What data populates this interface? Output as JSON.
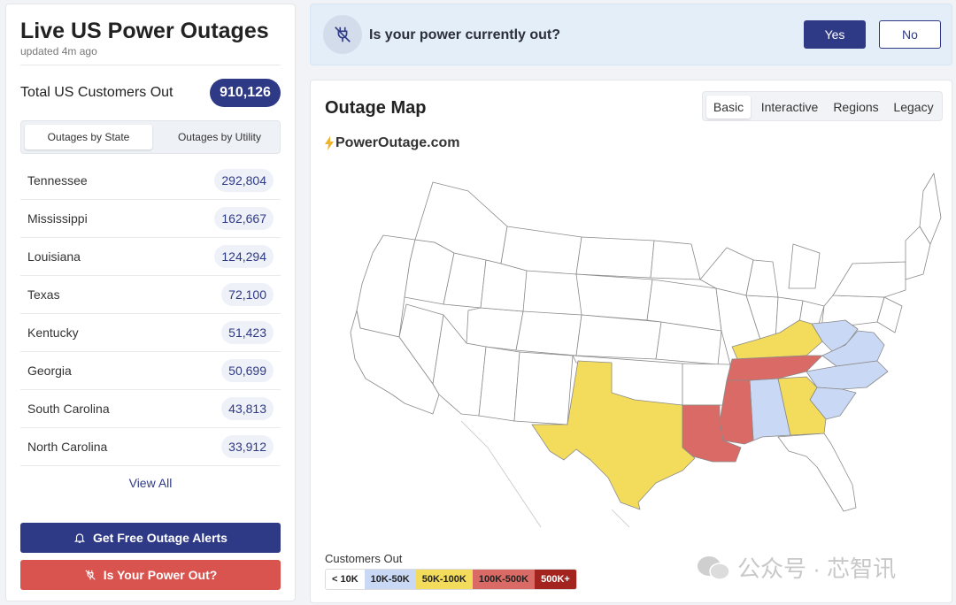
{
  "sidebar": {
    "title": "Live US Power Outages",
    "updated": "updated 4m ago",
    "total_label": "Total US Customers Out",
    "total_value": "910,126",
    "tabs": [
      {
        "label": "Outages by State"
      },
      {
        "label": "Outages by Utility"
      }
    ],
    "states": [
      {
        "name": "Tennessee",
        "value": "292,804"
      },
      {
        "name": "Mississippi",
        "value": "162,667"
      },
      {
        "name": "Louisiana",
        "value": "124,294"
      },
      {
        "name": "Texas",
        "value": "72,100"
      },
      {
        "name": "Kentucky",
        "value": "51,423"
      },
      {
        "name": "Georgia",
        "value": "50,699"
      },
      {
        "name": "South Carolina",
        "value": "43,813"
      },
      {
        "name": "North Carolina",
        "value": "33,912"
      }
    ],
    "view_all": "View All",
    "alerts_button": "Get Free Outage Alerts",
    "power_out_button": "Is Your Power Out?"
  },
  "banner": {
    "question": "Is your power currently out?",
    "yes": "Yes",
    "no": "No"
  },
  "map": {
    "title": "Outage Map",
    "tabs": [
      "Basic",
      "Interactive",
      "Regions",
      "Legacy"
    ],
    "active_tab": "Basic",
    "brand": "PowerOutage.com",
    "legend_title": "Customers Out",
    "legend": [
      {
        "label": "< 10K",
        "color": "#ffffff"
      },
      {
        "label": "10K-50K",
        "color": "#c9d9f5"
      },
      {
        "label": "50K-100K",
        "color": "#f3dc5c"
      },
      {
        "label": "100K-500K",
        "color": "#d96a65"
      },
      {
        "label": "500K+",
        "color": "#a3231f"
      }
    ]
  },
  "watermark": "公众号 · 芯智讯",
  "colors": {
    "primary": "#2f3a87",
    "danger": "#d9534f",
    "level_10k_50k": "#c9d9f5",
    "level_50k_100k": "#f3dc5c",
    "level_100k_500k": "#d96a65"
  }
}
